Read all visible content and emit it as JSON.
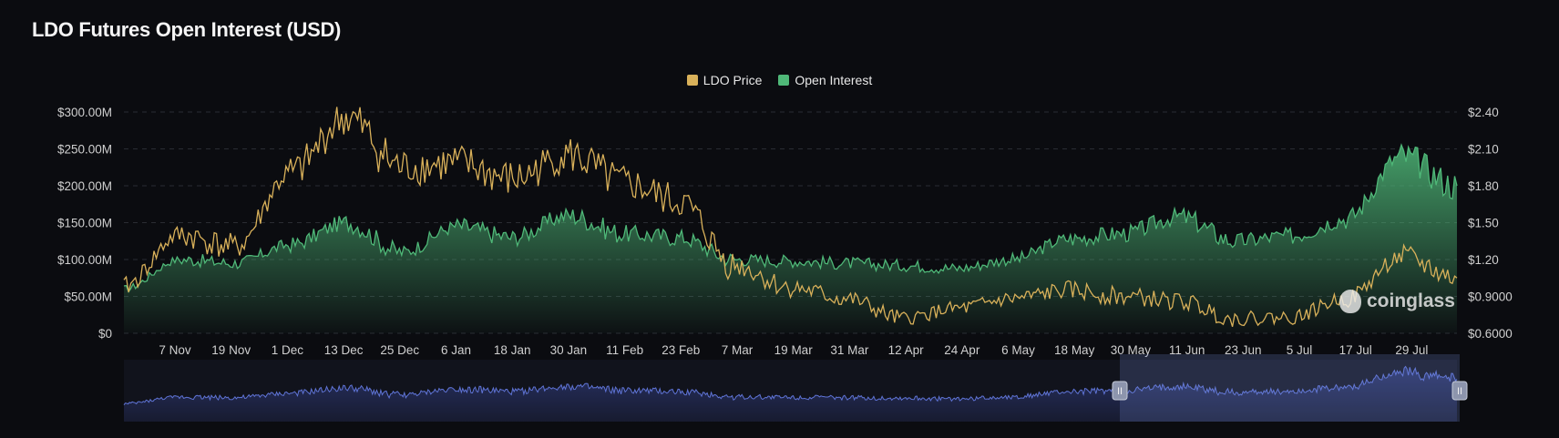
{
  "title": "LDO Futures Open Interest (USD)",
  "watermark": "coinglass",
  "colors": {
    "price": "#d9b15a",
    "oi": "#4fb878",
    "background": "#0b0c10",
    "navigator_line": "#5f74d6"
  },
  "legend": [
    {
      "label": "LDO Price",
      "color": "#d9b15a"
    },
    {
      "label": "Open Interest",
      "color": "#4fb878"
    }
  ],
  "chart_data": {
    "type": "area",
    "title": "LDO Futures Open Interest (USD)",
    "x_tick_labels": [
      "7 Nov",
      "19 Nov",
      "1 Dec",
      "13 Dec",
      "25 Dec",
      "6 Jan",
      "18 Jan",
      "30 Jan",
      "11 Feb",
      "23 Feb",
      "7 Mar",
      "19 Mar",
      "31 Mar",
      "12 Apr",
      "24 Apr",
      "6 May",
      "18 May",
      "30 May",
      "11 Jun",
      "23 Jun",
      "5 Jul",
      "17 Jul",
      "29 Jul"
    ],
    "x": [
      "26 Oct",
      "7 Nov",
      "19 Nov",
      "1 Dec",
      "13 Dec",
      "25 Dec",
      "6 Jan",
      "18 Jan",
      "30 Jan",
      "11 Feb",
      "23 Feb",
      "7 Mar",
      "19 Mar",
      "31 Mar",
      "12 Apr",
      "24 Apr",
      "6 May",
      "18 May",
      "30 May",
      "11 Jun",
      "23 Jun",
      "5 Jul",
      "17 Jul",
      "29 Jul",
      "8 Aug"
    ],
    "y_left_ticks": [
      "$0",
      "$50.00M",
      "$100.00M",
      "$150.00M",
      "$200.00M",
      "$250.00M",
      "$300.00M"
    ],
    "y_right_ticks": [
      "$0.6000",
      "$0.9000",
      "$1.20",
      "$1.50",
      "$1.80",
      "$2.10",
      "$2.40"
    ],
    "y_left_range": [
      0,
      300
    ],
    "y_right_range": [
      0.6,
      2.4
    ],
    "grid": true,
    "legend_position": "top-center",
    "series": [
      {
        "name": "Open Interest",
        "axis": "left",
        "unit": "$M",
        "values": [
          60,
          100,
          95,
          120,
          150,
          110,
          145,
          130,
          160,
          135,
          130,
          100,
          98,
          95,
          92,
          88,
          100,
          128,
          135,
          158,
          125,
          132,
          155,
          240,
          200
        ]
      },
      {
        "name": "LDO Price",
        "axis": "right",
        "unit": "$",
        "values": [
          0.98,
          1.4,
          1.3,
          1.9,
          2.35,
          1.95,
          1.98,
          1.85,
          2.05,
          1.82,
          1.67,
          1.15,
          0.97,
          0.88,
          0.72,
          0.8,
          0.88,
          0.95,
          0.9,
          0.86,
          0.72,
          0.73,
          0.88,
          1.22,
          1.05
        ]
      }
    ]
  },
  "navigator": {
    "left_handle": "II",
    "right_handle": "II"
  }
}
